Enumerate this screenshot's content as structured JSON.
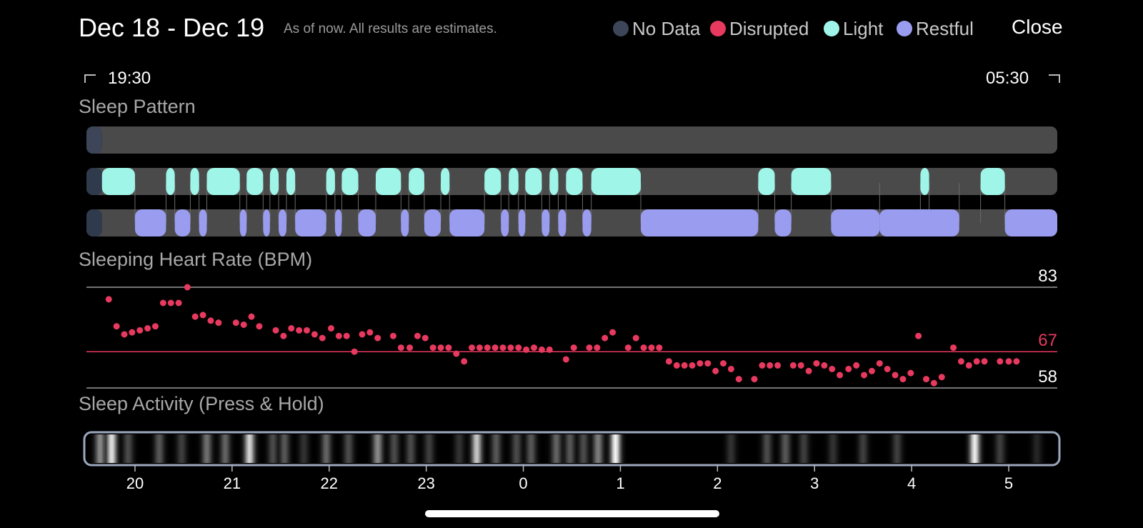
{
  "header": {
    "title": "Dec 18 - Dec 19",
    "subtitle": "As of now. All results are estimates.",
    "close_label": "Close"
  },
  "legend": [
    {
      "label": "No Data",
      "color": "#3c4658"
    },
    {
      "label": "Disrupted",
      "color": "#e8395f"
    },
    {
      "label": "Light",
      "color": "#9ff5e8"
    },
    {
      "label": "Restful",
      "color": "#9a9cf0"
    }
  ],
  "time_range": {
    "start": "19:30",
    "end": "05:30"
  },
  "sections": {
    "sleep_pattern": "Sleep Pattern",
    "heart_rate": "Sleeping Heart Rate (BPM)",
    "activity": "Sleep Activity (Press & Hold)"
  },
  "chart_data": {
    "type": "scatter",
    "x_unit": "hours since 19:30",
    "x_range": [
      0,
      10
    ],
    "x_ticks": [
      {
        "label": "20",
        "x": 0.5
      },
      {
        "label": "21",
        "x": 1.5
      },
      {
        "label": "22",
        "x": 2.5
      },
      {
        "label": "23",
        "x": 3.5
      },
      {
        "label": "0",
        "x": 4.5
      },
      {
        "label": "1",
        "x": 5.5
      },
      {
        "label": "2",
        "x": 6.5
      },
      {
        "label": "3",
        "x": 7.5
      },
      {
        "label": "4",
        "x": 8.5
      },
      {
        "label": "5",
        "x": 9.5
      }
    ],
    "sleep_pattern": {
      "no_data": [
        [
          0,
          0.16
        ]
      ],
      "light": [
        [
          0.16,
          0.5
        ],
        [
          0.82,
          0.91
        ],
        [
          1.07,
          1.16
        ],
        [
          1.24,
          1.58
        ],
        [
          1.65,
          1.82
        ],
        [
          1.89,
          1.98
        ],
        [
          2.06,
          2.15
        ],
        [
          2.47,
          2.56
        ],
        [
          2.63,
          2.8
        ],
        [
          2.98,
          3.24
        ],
        [
          3.32,
          3.48
        ],
        [
          3.65,
          3.74
        ],
        [
          4.1,
          4.27
        ],
        [
          4.35,
          4.45
        ],
        [
          4.52,
          4.69
        ],
        [
          4.77,
          4.86
        ],
        [
          4.94,
          5.11
        ],
        [
          5.2,
          5.71
        ],
        [
          6.92,
          7.09
        ],
        [
          7.26,
          7.67
        ],
        [
          8.59,
          8.68
        ],
        [
          9.21,
          9.46
        ]
      ],
      "restful": [
        [
          0.5,
          0.82
        ],
        [
          0.91,
          1.07
        ],
        [
          1.16,
          1.24
        ],
        [
          1.58,
          1.65
        ],
        [
          1.82,
          1.89
        ],
        [
          1.98,
          2.06
        ],
        [
          2.15,
          2.47
        ],
        [
          2.56,
          2.63
        ],
        [
          2.8,
          2.98
        ],
        [
          3.24,
          3.32
        ],
        [
          3.48,
          3.65
        ],
        [
          3.74,
          4.1
        ],
        [
          4.27,
          4.35
        ],
        [
          4.45,
          4.52
        ],
        [
          4.69,
          4.77
        ],
        [
          4.86,
          4.94
        ],
        [
          5.11,
          5.2
        ],
        [
          5.71,
          6.92
        ],
        [
          7.09,
          7.26
        ],
        [
          7.67,
          8.17
        ],
        [
          8.17,
          8.99
        ],
        [
          9.46,
          10
        ]
      ]
    },
    "heart_rate": {
      "y_label": "Sleeping Heart Rate (BPM)",
      "ylim": [
        58,
        83
      ],
      "max": 83,
      "avg": 67,
      "min": 58,
      "points": [
        [
          0.23,
          80
        ],
        [
          0.31,
          73.3
        ],
        [
          0.39,
          71.3
        ],
        [
          0.47,
          71.8
        ],
        [
          0.55,
          72.3
        ],
        [
          0.63,
          72.8
        ],
        [
          0.71,
          73.3
        ],
        [
          0.79,
          79.1
        ],
        [
          0.87,
          79.1
        ],
        [
          0.95,
          79.1
        ],
        [
          1.04,
          83
        ],
        [
          1.12,
          75.7
        ],
        [
          1.2,
          76.1
        ],
        [
          1.28,
          74.7
        ],
        [
          1.36,
          74.2
        ],
        [
          1.54,
          74.2
        ],
        [
          1.62,
          73.7
        ],
        [
          1.7,
          75.7
        ],
        [
          1.78,
          73.3
        ],
        [
          1.95,
          72.3
        ],
        [
          2.03,
          70.9
        ],
        [
          2.11,
          72.8
        ],
        [
          2.19,
          72.3
        ],
        [
          2.27,
          72.3
        ],
        [
          2.35,
          71.3
        ],
        [
          2.43,
          70.4
        ],
        [
          2.52,
          72.8
        ],
        [
          2.6,
          70.9
        ],
        [
          2.68,
          70.9
        ],
        [
          2.76,
          67.0
        ],
        [
          2.84,
          71.3
        ],
        [
          2.92,
          71.8
        ],
        [
          3.0,
          70.4
        ],
        [
          3.16,
          70.9
        ],
        [
          3.24,
          68.0
        ],
        [
          3.33,
          68.0
        ],
        [
          3.41,
          70.9
        ],
        [
          3.49,
          70.4
        ],
        [
          3.57,
          68.0
        ],
        [
          3.65,
          68.0
        ],
        [
          3.73,
          68.0
        ],
        [
          3.81,
          66.5
        ],
        [
          3.89,
          64.6
        ],
        [
          3.97,
          68.0
        ],
        [
          4.05,
          68.0
        ],
        [
          4.13,
          68.0
        ],
        [
          4.21,
          68.0
        ],
        [
          4.29,
          68.0
        ],
        [
          4.37,
          68.0
        ],
        [
          4.45,
          68.0
        ],
        [
          4.53,
          67.5
        ],
        [
          4.61,
          68.0
        ],
        [
          4.69,
          67.5
        ],
        [
          4.77,
          67.5
        ],
        [
          4.94,
          65.1
        ],
        [
          5.02,
          68.0
        ],
        [
          5.18,
          68.0
        ],
        [
          5.26,
          68.0
        ],
        [
          5.34,
          70.4
        ],
        [
          5.42,
          71.8
        ],
        [
          5.58,
          68.0
        ],
        [
          5.66,
          70.4
        ],
        [
          5.74,
          68.0
        ],
        [
          5.82,
          68.0
        ],
        [
          5.9,
          68.0
        ],
        [
          6.0,
          64.6
        ],
        [
          6.08,
          63.6
        ],
        [
          6.16,
          63.6
        ],
        [
          6.24,
          63.6
        ],
        [
          6.32,
          64.1
        ],
        [
          6.4,
          64.1
        ],
        [
          6.48,
          62.2
        ],
        [
          6.56,
          64.1
        ],
        [
          6.64,
          62.7
        ],
        [
          6.72,
          60.2
        ],
        [
          6.88,
          60.2
        ],
        [
          6.96,
          63.6
        ],
        [
          7.04,
          63.6
        ],
        [
          7.12,
          63.6
        ],
        [
          7.28,
          63.6
        ],
        [
          7.36,
          63.6
        ],
        [
          7.44,
          62.2
        ],
        [
          7.52,
          64.1
        ],
        [
          7.6,
          63.6
        ],
        [
          7.68,
          62.7
        ],
        [
          7.76,
          61.2
        ],
        [
          7.85,
          62.7
        ],
        [
          7.93,
          63.6
        ],
        [
          8.01,
          61.2
        ],
        [
          8.09,
          62.2
        ],
        [
          8.17,
          64.1
        ],
        [
          8.25,
          62.7
        ],
        [
          8.33,
          61.2
        ],
        [
          8.41,
          60.2
        ],
        [
          8.49,
          61.7
        ],
        [
          8.57,
          70.9
        ],
        [
          8.65,
          60.2
        ],
        [
          8.73,
          59.2
        ],
        [
          8.81,
          60.7
        ],
        [
          8.93,
          68.0
        ],
        [
          9.01,
          64.6
        ],
        [
          9.09,
          63.6
        ],
        [
          9.17,
          64.6
        ],
        [
          9.25,
          64.6
        ],
        [
          9.41,
          64.6
        ],
        [
          9.5,
          64.6
        ],
        [
          9.58,
          64.6
        ]
      ]
    },
    "activity": {
      "intensity_peaks": [
        [
          0.14,
          0.55
        ],
        [
          0.26,
          0.9
        ],
        [
          0.43,
          0.3
        ],
        [
          0.75,
          0.35
        ],
        [
          0.98,
          0.25
        ],
        [
          1.24,
          0.45
        ],
        [
          1.43,
          0.4
        ],
        [
          1.68,
          0.85
        ],
        [
          1.92,
          0.3
        ],
        [
          2.04,
          0.35
        ],
        [
          2.24,
          0.2
        ],
        [
          2.47,
          0.4
        ],
        [
          2.7,
          0.3
        ],
        [
          3.0,
          0.55
        ],
        [
          3.17,
          0.3
        ],
        [
          3.34,
          0.3
        ],
        [
          3.53,
          0.25
        ],
        [
          3.84,
          0.2
        ],
        [
          4.02,
          0.8
        ],
        [
          4.22,
          0.35
        ],
        [
          4.43,
          0.3
        ],
        [
          4.58,
          0.35
        ],
        [
          4.84,
          0.4
        ],
        [
          4.98,
          0.35
        ],
        [
          5.12,
          0.3
        ],
        [
          5.27,
          0.5
        ],
        [
          5.45,
          0.98
        ],
        [
          6.64,
          0.2
        ],
        [
          7.01,
          0.3
        ],
        [
          7.2,
          0.35
        ],
        [
          7.39,
          0.25
        ],
        [
          7.69,
          0.2
        ],
        [
          8.0,
          0.25
        ],
        [
          8.35,
          0.25
        ],
        [
          9.15,
          0.95
        ],
        [
          9.41,
          0.25
        ],
        [
          9.79,
          0.15
        ]
      ]
    }
  }
}
